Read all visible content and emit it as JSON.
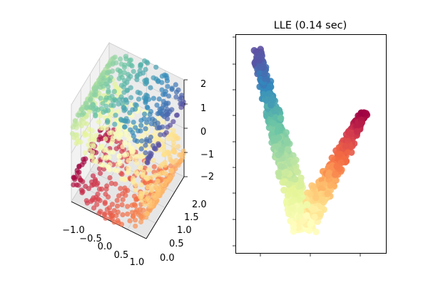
{
  "chart_data": [
    {
      "type": "scatter3d",
      "colormap": "Spectral",
      "xlim": [
        -1,
        1
      ],
      "ylim": [
        0,
        2
      ],
      "zlim": [
        -2,
        2
      ],
      "xtick_labels": [
        "−1.0",
        "−0.5",
        "0.0",
        "0.5",
        "1.0"
      ],
      "ytick_labels": [
        "0.0",
        "0.5",
        "1.0",
        "1.5",
        "2.0"
      ],
      "ztick_labels": [
        "2",
        "1",
        "0",
        "−1",
        "−2"
      ],
      "grid": true
    },
    {
      "type": "scatter",
      "title": "LLE (0.14 sec)",
      "colormap": "Spectral",
      "tick_labels": "none",
      "grid": false
    }
  ]
}
